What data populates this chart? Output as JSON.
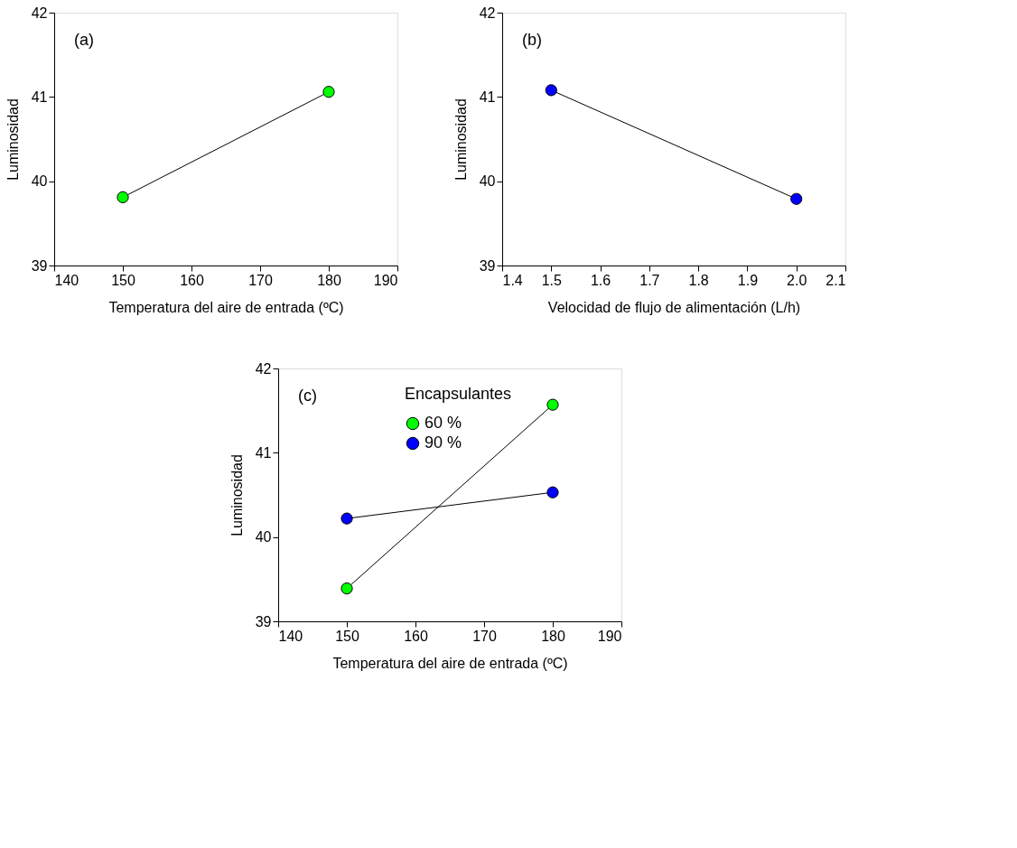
{
  "chart_data": [
    {
      "type": "line",
      "xlabel": "Temperatura del aire de entrada (ºC)",
      "ylabel": "Luminosidad",
      "annotations": [
        "(a)"
      ],
      "x": [
        150,
        180
      ],
      "series": [
        {
          "color": "#00ff00",
          "values": [
            39.81,
            41.06
          ]
        }
      ],
      "xlim": [
        140,
        190
      ],
      "xticks": [
        140,
        150,
        160,
        170,
        180,
        190
      ],
      "ylim": [
        39,
        42
      ],
      "yticks": [
        39,
        40,
        41,
        42
      ],
      "grid": false,
      "marker": "circle",
      "line_style": "solid"
    },
    {
      "type": "line",
      "xlabel": "Velocidad de flujo de alimentación (L/h)",
      "ylabel": "Luminosidad",
      "annotations": [
        "(b)"
      ],
      "x": [
        1.5,
        2.0
      ],
      "series": [
        {
          "color": "#0000ff",
          "values": [
            41.08,
            39.79
          ]
        }
      ],
      "xlim": [
        1.4,
        2.1
      ],
      "xticks": [
        1.4,
        1.5,
        1.6,
        1.7,
        1.8,
        1.9,
        {
          "value": 2.0,
          "label": "2.0"
        },
        2.1
      ],
      "ylim": [
        39,
        42
      ],
      "yticks": [
        39,
        40,
        41,
        42
      ],
      "grid": false,
      "marker": "circle",
      "line_style": "solid"
    },
    {
      "type": "line",
      "xlabel": "Temperatura del aire de entrada (ºC)",
      "ylabel": "Luminosidad",
      "annotations": [
        "(c)"
      ],
      "legend_title": "Encapsulantes",
      "legend": "top left",
      "x": [
        150,
        180
      ],
      "series": [
        {
          "name": "60 %",
          "color": "#00ff00",
          "values": [
            39.39,
            41.57
          ]
        },
        {
          "name": "90 %",
          "color": "#0000ff",
          "values": [
            40.22,
            40.53
          ]
        }
      ],
      "xlim": [
        140,
        190
      ],
      "xticks": [
        140,
        150,
        160,
        170,
        180,
        190
      ],
      "ylim": [
        39,
        42
      ],
      "yticks": [
        39,
        40,
        41,
        42
      ],
      "grid": false,
      "marker": "circle",
      "line_style": "solid"
    }
  ]
}
